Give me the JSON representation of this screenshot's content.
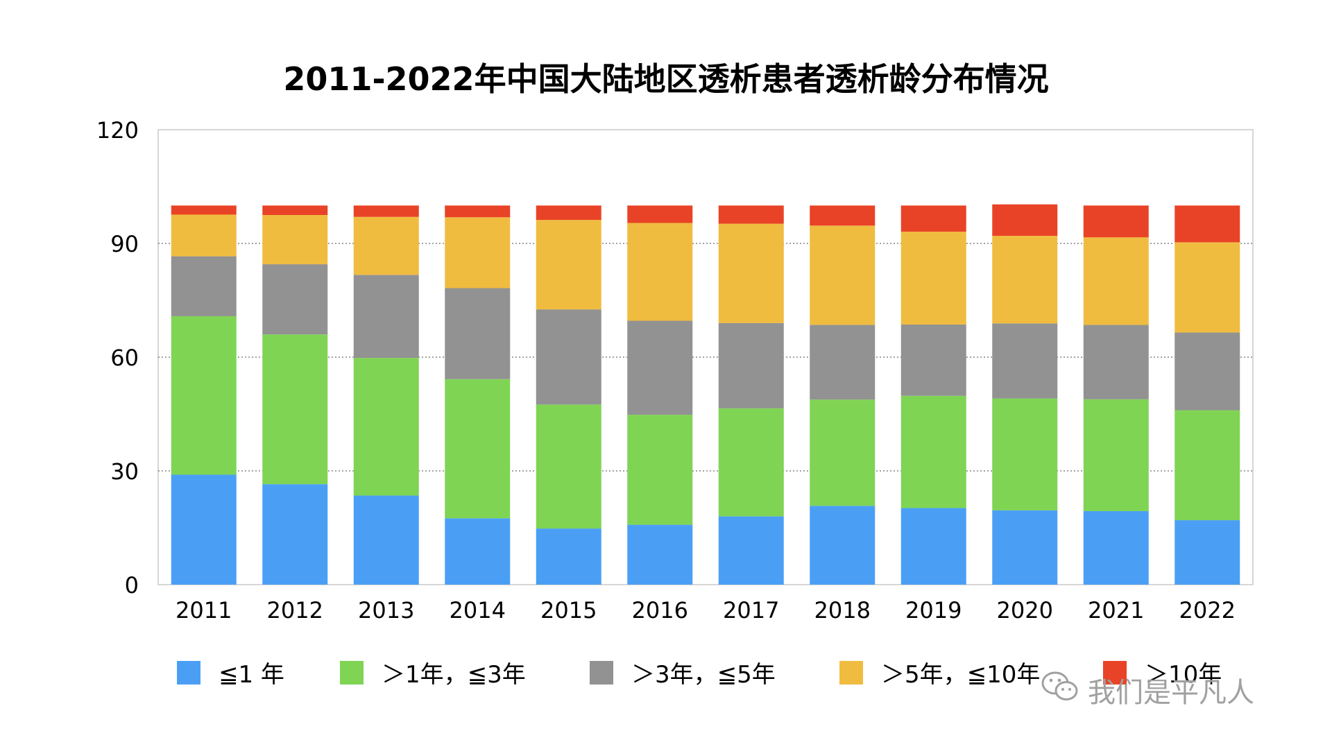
{
  "chart_data": {
    "type": "bar",
    "stacked": true,
    "title": "2011-2022年中国大陆地区透析患者透析龄分布情况",
    "categories": [
      "2011",
      "2012",
      "2013",
      "2014",
      "2015",
      "2016",
      "2017",
      "2018",
      "2019",
      "2020",
      "2021",
      "2022"
    ],
    "ylim": [
      0,
      120
    ],
    "yticks": [
      "0",
      "30",
      "60",
      "90",
      "120"
    ],
    "grid": true,
    "legend_position": "bottom",
    "series": [
      {
        "name": "≦1 年",
        "color": "#4a9ff5",
        "values": [
          29.0,
          26.5,
          23.5,
          17.5,
          14.8,
          15.8,
          18.0,
          20.8,
          20.2,
          19.6,
          19.4,
          17.0
        ]
      },
      {
        "name": "＞1年，≦3年",
        "color": "#7fd454",
        "values": [
          41.8,
          39.5,
          36.3,
          36.7,
          32.7,
          29.0,
          28.5,
          28.0,
          29.6,
          29.5,
          29.5,
          29.0
        ]
      },
      {
        "name": "＞3年，≦5年",
        "color": "#929292",
        "values": [
          15.8,
          18.5,
          21.9,
          24.0,
          25.1,
          24.8,
          22.5,
          19.7,
          18.8,
          19.8,
          19.6,
          20.5
        ]
      },
      {
        "name": "＞5年，≦10年",
        "color": "#f0bc40",
        "values": [
          11.0,
          13.0,
          15.3,
          18.7,
          23.6,
          25.8,
          26.2,
          26.2,
          24.5,
          23.1,
          23.1,
          23.8
        ]
      },
      {
        "name": "＞10年",
        "color": "#e94327",
        "values": [
          2.4,
          2.5,
          3.0,
          3.1,
          3.8,
          4.6,
          4.8,
          5.3,
          6.9,
          8.3,
          8.4,
          9.7
        ]
      }
    ]
  },
  "watermark": {
    "label": "我们是平凡人",
    "icon": "wechat-icon"
  }
}
